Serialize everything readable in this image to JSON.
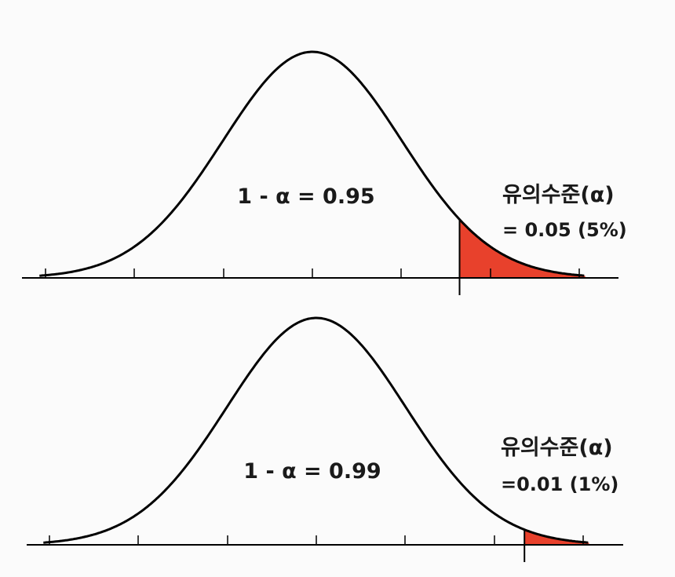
{
  "colors": {
    "tail_fill": "#e8412c",
    "curve": "#000000",
    "background": "#fbfbfb"
  },
  "panels": [
    {
      "confidence_label": "1 - α = 0.95",
      "significance_title": "유의수준(α)",
      "significance_value": "= 0.05 (5%)",
      "alpha": 0.05
    },
    {
      "confidence_label": "1 - α = 0.99",
      "significance_title": "유의수준(α)",
      "significance_value": "=0.01 (1%)",
      "alpha": 0.01
    }
  ]
}
